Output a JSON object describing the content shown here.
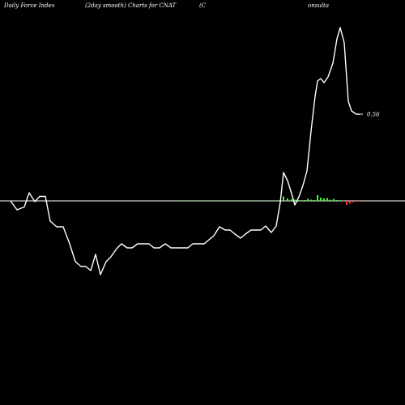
{
  "header": {
    "left": "Daily Force  Index",
    "middle": "(2day smooth) Charts for CNAT",
    "right_start": "(C",
    "right_end": "onsulta"
  },
  "chart_data": {
    "type": "line",
    "title": "",
    "xlabel": "",
    "ylabel": "",
    "last_value_label": "0.56",
    "zero_line": true,
    "grid": false,
    "line_color": "#ffffff",
    "zero_line_color": "#ffffff",
    "positive_bar_color": "#33ff33",
    "negative_bar_color": "#ff3333",
    "line": [
      [
        13,
        0
      ],
      [
        21,
        -1.1
      ],
      [
        30,
        -0.75
      ],
      [
        36,
        1
      ],
      [
        43,
        -0.1
      ],
      [
        49,
        0.55
      ],
      [
        56,
        0.55
      ],
      [
        62,
        -2.5
      ],
      [
        70,
        -3.2
      ],
      [
        78,
        -3.2
      ],
      [
        86,
        -5.3
      ],
      [
        93,
        -7.5
      ],
      [
        100,
        -8.1
      ],
      [
        106,
        -8.1
      ],
      [
        112,
        -8.6
      ],
      [
        118,
        -6.6
      ],
      [
        124,
        -9.1
      ],
      [
        131,
        -7.5
      ],
      [
        137,
        -6.9
      ],
      [
        144,
        -5.9
      ],
      [
        150,
        -5.3
      ],
      [
        157,
        -5.8
      ],
      [
        163,
        -5.8
      ],
      [
        170,
        -5.3
      ],
      [
        177,
        -5.3
      ],
      [
        184,
        -5.3
      ],
      [
        190,
        -5.8
      ],
      [
        197,
        -5.8
      ],
      [
        204,
        -5.3
      ],
      [
        211,
        -5.8
      ],
      [
        218,
        -5.8
      ],
      [
        225,
        -5.8
      ],
      [
        232,
        -5.8
      ],
      [
        238,
        -5.3
      ],
      [
        245,
        -5.3
      ],
      [
        252,
        -5.3
      ],
      [
        258,
        -4.8
      ],
      [
        264,
        -4.3
      ],
      [
        271,
        -3.2
      ],
      [
        278,
        -3.6
      ],
      [
        284,
        -3.6
      ],
      [
        290,
        -4.1
      ],
      [
        297,
        -4.6
      ],
      [
        303,
        -4.1
      ],
      [
        310,
        -3.6
      ],
      [
        316,
        -3.6
      ],
      [
        322,
        -3.6
      ],
      [
        328,
        -3.1
      ],
      [
        335,
        -3.9
      ],
      [
        341,
        -3.1
      ],
      [
        346,
        -0.2
      ],
      [
        350,
        3.5
      ],
      [
        355,
        2.5
      ],
      [
        360,
        0.9
      ],
      [
        364,
        -0.5
      ],
      [
        369,
        0.5
      ],
      [
        374,
        1.9
      ],
      [
        379,
        3.7
      ],
      [
        384,
        8.6
      ],
      [
        389,
        12.9
      ],
      [
        392,
        14.8
      ],
      [
        396,
        15.1
      ],
      [
        400,
        14.6
      ],
      [
        405,
        15.3
      ],
      [
        411,
        17
      ],
      [
        416,
        20
      ],
      [
        420,
        21.4
      ],
      [
        425,
        19.5
      ],
      [
        430,
        12.3
      ],
      [
        434,
        11.1
      ],
      [
        440,
        10.7
      ],
      [
        444,
        10.7
      ]
    ],
    "bars": [
      [
        220,
        0.03
      ],
      [
        230,
        0.03
      ],
      [
        240,
        0.03
      ],
      [
        250,
        0.03
      ],
      [
        260,
        0.03
      ],
      [
        270,
        0.05
      ],
      [
        280,
        0.03
      ],
      [
        290,
        0.05
      ],
      [
        300,
        0.05
      ],
      [
        310,
        0.03
      ],
      [
        320,
        0.05
      ],
      [
        330,
        0.03
      ],
      [
        340,
        0.05
      ],
      [
        350,
        0.55
      ],
      [
        355,
        0.3
      ],
      [
        360,
        0.2
      ],
      [
        364,
        0.15
      ],
      [
        368,
        0.1
      ],
      [
        372,
        0.05
      ],
      [
        376,
        0.1
      ],
      [
        380,
        0.25
      ],
      [
        384,
        0.15
      ],
      [
        388,
        0.1
      ],
      [
        392,
        0.7
      ],
      [
        396,
        0.4
      ],
      [
        400,
        0.3
      ],
      [
        404,
        0.35
      ],
      [
        408,
        0.15
      ],
      [
        412,
        0.25
      ],
      [
        416,
        0.1
      ],
      [
        420,
        0.05
      ],
      [
        424,
        -0.05
      ],
      [
        428,
        -0.5
      ],
      [
        432,
        -0.35
      ],
      [
        436,
        -0.2
      ],
      [
        440,
        -0.1
      ],
      [
        444,
        -0.05
      ]
    ],
    "xlim": [
      0,
      500
    ],
    "ylim": [
      -10,
      21.4
    ]
  }
}
